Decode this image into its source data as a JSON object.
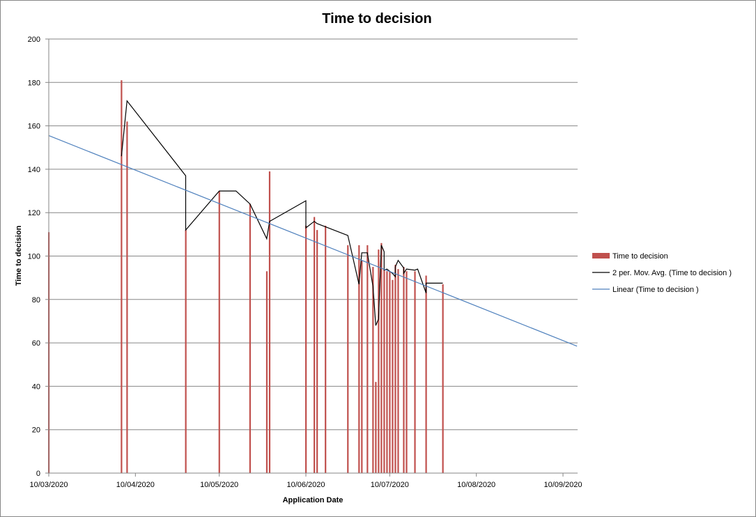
{
  "chart_data": {
    "type": "bar",
    "title": "Time to decision",
    "xlabel": "Application Date",
    "ylabel": "Time to decision",
    "ylim": [
      0,
      200
    ],
    "yticks": [
      0,
      20,
      40,
      60,
      80,
      100,
      120,
      140,
      160,
      180,
      200
    ],
    "xlim": [
      "2020-03-10",
      "2020-09-15"
    ],
    "xticks": [
      {
        "date": "2020-03-10",
        "label": "10/03/2020"
      },
      {
        "date": "2020-04-10",
        "label": "10/04/2020"
      },
      {
        "date": "2020-05-10",
        "label": "10/05/2020"
      },
      {
        "date": "2020-06-10",
        "label": "10/06/2020"
      },
      {
        "date": "2020-07-10",
        "label": "10/07/2020"
      },
      {
        "date": "2020-08-10",
        "label": "10/08/2020"
      },
      {
        "date": "2020-09-10",
        "label": "10/09/2020"
      }
    ],
    "grid": true,
    "legend_position": "right",
    "series": [
      {
        "name": "Time to decision",
        "type": "bar",
        "color": "#C0504D",
        "points": [
          [
            "2020-03-10",
            111
          ],
          [
            "2020-04-05",
            181
          ],
          [
            "2020-04-07",
            162
          ],
          [
            "2020-04-28",
            112
          ],
          [
            "2020-05-10",
            130
          ],
          [
            "2020-05-21",
            124
          ],
          [
            "2020-05-27",
            93
          ],
          [
            "2020-05-28",
            139
          ],
          [
            "2020-06-10",
            114
          ],
          [
            "2020-06-13",
            118
          ],
          [
            "2020-06-14",
            112
          ],
          [
            "2020-06-17",
            114
          ],
          [
            "2020-06-25",
            105
          ],
          [
            "2020-06-29",
            105
          ],
          [
            "2020-06-30",
            98
          ],
          [
            "2020-07-02",
            105
          ],
          [
            "2020-07-04",
            95
          ],
          [
            "2020-07-05",
            42
          ],
          [
            "2020-07-06",
            103
          ],
          [
            "2020-07-07",
            106
          ],
          [
            "2020-07-08",
            94
          ],
          [
            "2020-07-09",
            93
          ],
          [
            "2020-07-10",
            93
          ],
          [
            "2020-07-11",
            89
          ],
          [
            "2020-07-12",
            96
          ],
          [
            "2020-07-13",
            94
          ],
          [
            "2020-07-15",
            95
          ],
          [
            "2020-07-16",
            93
          ],
          [
            "2020-07-19",
            93
          ],
          [
            "2020-07-23",
            91
          ],
          [
            "2020-07-29",
            87
          ]
        ]
      },
      {
        "name": "2 per. Mov. Avg. (Time to decision )",
        "type": "line",
        "color": "#000000",
        "points": [
          [
            "2020-04-05",
            146
          ],
          [
            "2020-04-07",
            171.5
          ],
          [
            "2020-04-28",
            137
          ],
          [
            "2020-04-28",
            112
          ],
          [
            "2020-05-10",
            130
          ],
          [
            "2020-05-16",
            130
          ],
          [
            "2020-05-21",
            124
          ],
          [
            "2020-05-27",
            108
          ],
          [
            "2020-05-28",
            116
          ],
          [
            "2020-06-10",
            125.5
          ],
          [
            "2020-06-10",
            113
          ],
          [
            "2020-06-13",
            116
          ],
          [
            "2020-06-14",
            115
          ],
          [
            "2020-06-25",
            109.5
          ],
          [
            "2020-06-29",
            87
          ],
          [
            "2020-06-30",
            101.5
          ],
          [
            "2020-07-02",
            101.5
          ],
          [
            "2020-07-04",
            86
          ],
          [
            "2020-07-05",
            68
          ],
          [
            "2020-07-06",
            71
          ],
          [
            "2020-07-07",
            105
          ],
          [
            "2020-07-08",
            102
          ],
          [
            "2020-07-08",
            93.5
          ],
          [
            "2020-07-09",
            94
          ],
          [
            "2020-07-11",
            92
          ],
          [
            "2020-07-12",
            90.5
          ],
          [
            "2020-07-12",
            95
          ],
          [
            "2020-07-13",
            98
          ],
          [
            "2020-07-15",
            94.5
          ],
          [
            "2020-07-15",
            92
          ],
          [
            "2020-07-16",
            94
          ],
          [
            "2020-07-19",
            93.5
          ],
          [
            "2020-07-20",
            94
          ],
          [
            "2020-07-23",
            83
          ],
          [
            "2020-07-23",
            87.5
          ],
          [
            "2020-07-29",
            87.5
          ]
        ]
      },
      {
        "name": "Linear (Time to decision )",
        "type": "line",
        "color": "#4F81BD",
        "points": [
          [
            "2020-03-10",
            155.5
          ],
          [
            "2020-09-15",
            58.5
          ]
        ]
      }
    ]
  }
}
